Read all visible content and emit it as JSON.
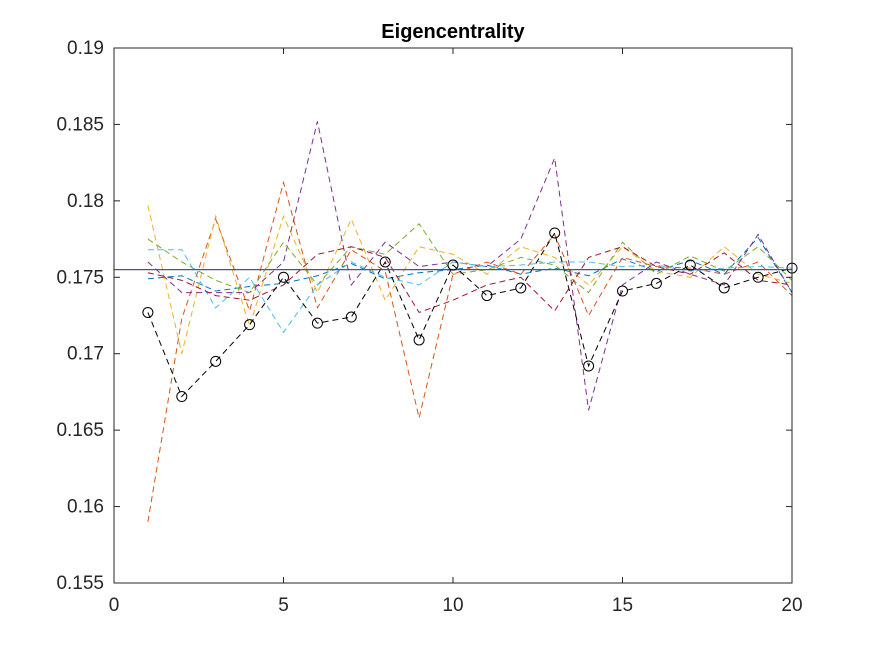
{
  "chart_data": {
    "type": "line",
    "title": "Eigencentrality",
    "xlabel": "",
    "ylabel": "",
    "xlim": [
      0,
      20
    ],
    "ylim": [
      0.155,
      0.19
    ],
    "xticks": [
      0,
      5,
      10,
      15,
      20
    ],
    "xtick_labels": [
      "0",
      "5",
      "10",
      "15",
      "20"
    ],
    "yticks": [
      0.155,
      0.16,
      0.165,
      0.17,
      0.175,
      0.18,
      0.185,
      0.19
    ],
    "ytick_labels": [
      "0.155",
      "0.16",
      "0.165",
      "0.17",
      "0.175",
      "0.18",
      "0.185",
      "0.19"
    ],
    "grid": false,
    "x": [
      1,
      2,
      3,
      4,
      5,
      6,
      7,
      8,
      9,
      10,
      11,
      12,
      13,
      14,
      15,
      16,
      17,
      18,
      19,
      20
    ],
    "series": [
      {
        "color": "#0072BD",
        "style": "dashed",
        "values": [
          0.1749,
          0.1751,
          0.1741,
          0.1744,
          0.1746,
          0.1751,
          0.1759,
          0.1749,
          0.1753,
          0.1755,
          0.1758,
          0.1752,
          0.1756,
          0.1751,
          0.1762,
          0.1754,
          0.1761,
          0.1752,
          0.1776,
          0.174
        ]
      },
      {
        "color": "#D95319",
        "style": "dashed",
        "values": [
          0.159,
          0.1723,
          0.1788,
          0.1728,
          0.1812,
          0.173,
          0.1768,
          0.1754,
          0.1658,
          0.1752,
          0.176,
          0.1752,
          0.1778,
          0.1725,
          0.1763,
          0.1757,
          0.1756,
          0.1752,
          0.176,
          0.1738
        ]
      },
      {
        "color": "#EDB120",
        "style": "dashed",
        "values": [
          0.1797,
          0.17,
          0.179,
          0.1718,
          0.179,
          0.174,
          0.1788,
          0.1735,
          0.177,
          0.1765,
          0.1752,
          0.177,
          0.1763,
          0.1745,
          0.177,
          0.1754,
          0.175,
          0.177,
          0.1752,
          0.1746
        ]
      },
      {
        "color": "#7E2F8E",
        "style": "dashed",
        "values": [
          0.176,
          0.174,
          0.174,
          0.174,
          0.176,
          0.1852,
          0.1745,
          0.1773,
          0.1757,
          0.176,
          0.1757,
          0.1775,
          0.1828,
          0.1663,
          0.1745,
          0.176,
          0.1752,
          0.1745,
          0.1778,
          0.174
        ]
      },
      {
        "color": "#77AC30",
        "style": "dashed",
        "values": [
          0.1775,
          0.176,
          0.1748,
          0.174,
          0.1773,
          0.1745,
          0.177,
          0.1765,
          0.1785,
          0.1752,
          0.1755,
          0.1763,
          0.1758,
          0.174,
          0.1773,
          0.1752,
          0.1764,
          0.1754,
          0.177,
          0.1748
        ]
      },
      {
        "color": "#4DBEEE",
        "style": "dashed",
        "values": [
          0.1768,
          0.1768,
          0.173,
          0.175,
          0.1714,
          0.1745,
          0.176,
          0.175,
          0.1745,
          0.176,
          0.1757,
          0.1758,
          0.176,
          0.176,
          0.1757,
          0.1758,
          0.1754,
          0.1756,
          0.1757,
          0.1756
        ]
      },
      {
        "color": "#A2142F",
        "style": "dashed",
        "values": [
          0.1753,
          0.1748,
          0.1738,
          0.1735,
          0.1745,
          0.1765,
          0.177,
          0.1763,
          0.1727,
          0.1735,
          0.1745,
          0.175,
          0.1728,
          0.1763,
          0.177,
          0.1757,
          0.1752,
          0.1766,
          0.1748,
          0.1745
        ]
      },
      {
        "color": "#000000",
        "style": "dashed",
        "marker": "circle",
        "values": [
          0.1727,
          0.1672,
          0.1695,
          0.1719,
          0.175,
          0.172,
          0.1724,
          0.176,
          0.1709,
          0.1758,
          0.1738,
          0.1743,
          0.1779,
          0.1692,
          0.1741,
          0.1746,
          0.1758,
          0.1743,
          0.175,
          0.1756
        ]
      }
    ],
    "reference_line": {
      "color": "#3B5A8C",
      "y": 0.1755
    }
  }
}
